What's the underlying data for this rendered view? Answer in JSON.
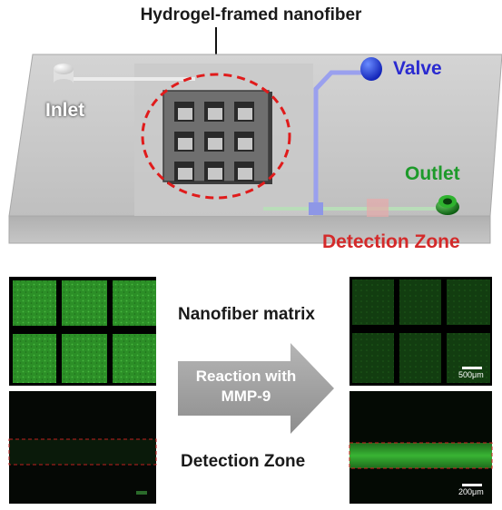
{
  "title": "Hydrogel-framed nanofiber",
  "chip": {
    "inlet_label": "Inlet",
    "valve_label": "Valve",
    "outlet_label": "Outlet",
    "detection_zone_label": "Detection Zone"
  },
  "panels": {
    "nanofiber_matrix_label": "Nanofiber matrix",
    "detection_zone_label": "Detection Zone",
    "arrow_line1": "Reaction with",
    "arrow_line2": "MMP-9",
    "scale_top": "500μm",
    "scale_bottom": "200μm"
  },
  "colors": {
    "valve": "#1f3fe0",
    "outlet": "#1a8a22",
    "dashed_circle": "#e01b1b",
    "fluorescence_green": "#2f9a2a"
  }
}
